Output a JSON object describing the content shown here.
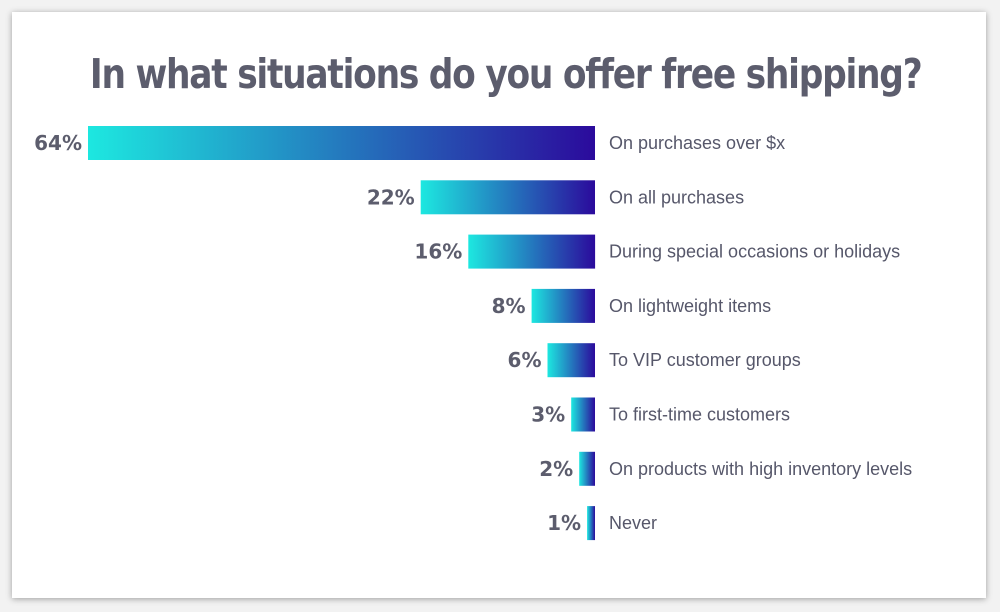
{
  "colors": {
    "gradient_start": "#1de8e0",
    "gradient_end": "#2b0a9c",
    "text": "#5c5d6d"
  },
  "chart_data": {
    "type": "bar",
    "orientation": "horizontal",
    "title": "In what situations do you offer free shipping?",
    "categories": [
      "On purchases over $x",
      "On all purchases",
      "During special occasions or holidays",
      "On lightweight items",
      "To VIP customer groups",
      "To first-time customers",
      "On products with high inventory levels",
      "Never"
    ],
    "values": [
      64,
      22,
      16,
      8,
      6,
      3,
      2,
      1
    ],
    "value_labels": [
      "64%",
      "22%",
      "16%",
      "8%",
      "6%",
      "3%",
      "2%",
      "1%"
    ],
    "unit": "%",
    "grid": false,
    "legend": "none"
  }
}
